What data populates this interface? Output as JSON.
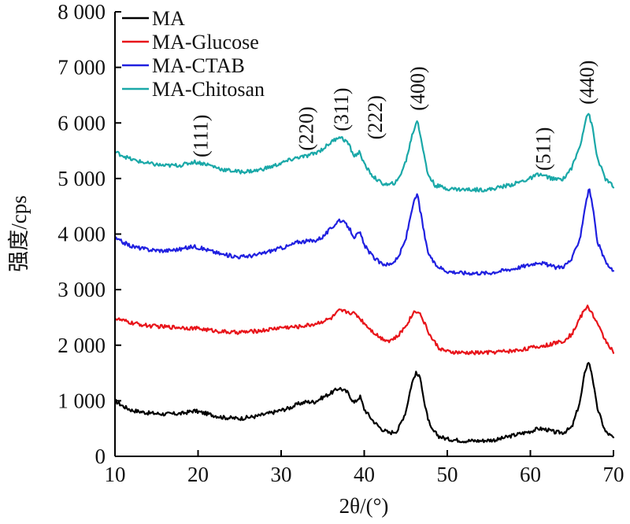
{
  "chart_data": {
    "type": "line",
    "xlabel": "2θ/(°)",
    "ylabel": "强度/cps",
    "xlim": [
      10,
      70
    ],
    "ylim": [
      0,
      8000
    ],
    "x_ticks": [
      10,
      20,
      30,
      40,
      50,
      60,
      70
    ],
    "x_tick_labels": [
      "10",
      "20",
      "30",
      "40",
      "50",
      "60",
      "70"
    ],
    "y_ticks": [
      0,
      1000,
      2000,
      3000,
      4000,
      5000,
      6000,
      7000,
      8000
    ],
    "y_tick_labels": [
      "0",
      "1 000",
      "2 000",
      "3 000",
      "4 000",
      "5 000",
      "6 000",
      "7 000",
      "8 000"
    ],
    "grid": false,
    "legend_position": "top-left",
    "series": [
      {
        "name": "MA",
        "color": "#000000",
        "points": [
          [
            10,
            1000
          ],
          [
            11,
            900
          ],
          [
            12,
            830
          ],
          [
            14,
            780
          ],
          [
            16,
            760
          ],
          [
            18,
            770
          ],
          [
            19.5,
            820
          ],
          [
            21,
            770
          ],
          [
            23,
            700
          ],
          [
            25,
            680
          ],
          [
            27,
            720
          ],
          [
            29,
            790
          ],
          [
            31,
            870
          ],
          [
            32,
            940
          ],
          [
            33,
            980
          ],
          [
            34,
            980
          ],
          [
            35,
            1060
          ],
          [
            36,
            1140
          ],
          [
            37,
            1230
          ],
          [
            38,
            1150
          ],
          [
            38.8,
            960
          ],
          [
            39.5,
            1080
          ],
          [
            40,
            850
          ],
          [
            41,
            650
          ],
          [
            42,
            500
          ],
          [
            43,
            420
          ],
          [
            44,
            460
          ],
          [
            45,
            800
          ],
          [
            45.7,
            1300
          ],
          [
            46.2,
            1500
          ],
          [
            46.8,
            1400
          ],
          [
            47.3,
            900
          ],
          [
            48,
            500
          ],
          [
            49,
            360
          ],
          [
            50,
            310
          ],
          [
            52,
            280
          ],
          [
            54,
            280
          ],
          [
            56,
            300
          ],
          [
            58,
            380
          ],
          [
            60,
            450
          ],
          [
            61,
            500
          ],
          [
            62,
            480
          ],
          [
            63,
            430
          ],
          [
            64,
            430
          ],
          [
            65,
            520
          ],
          [
            66,
            1000
          ],
          [
            66.6,
            1550
          ],
          [
            67,
            1700
          ],
          [
            67.4,
            1500
          ],
          [
            68,
            900
          ],
          [
            69,
            450
          ],
          [
            70,
            330
          ]
        ]
      },
      {
        "name": "MA-Glucose",
        "color": "#e8141a",
        "points": [
          [
            10,
            2480
          ],
          [
            12,
            2400
          ],
          [
            14,
            2350
          ],
          [
            16,
            2330
          ],
          [
            18,
            2320
          ],
          [
            20,
            2300
          ],
          [
            22,
            2260
          ],
          [
            24,
            2230
          ],
          [
            26,
            2240
          ],
          [
            28,
            2270
          ],
          [
            30,
            2320
          ],
          [
            32,
            2330
          ],
          [
            34,
            2380
          ],
          [
            36,
            2480
          ],
          [
            37,
            2620
          ],
          [
            38,
            2600
          ],
          [
            39,
            2560
          ],
          [
            40,
            2400
          ],
          [
            41,
            2250
          ],
          [
            42,
            2130
          ],
          [
            43,
            2080
          ],
          [
            44,
            2150
          ],
          [
            45,
            2350
          ],
          [
            46,
            2600
          ],
          [
            46.5,
            2620
          ],
          [
            47,
            2480
          ],
          [
            48,
            2150
          ],
          [
            49,
            1950
          ],
          [
            50,
            1880
          ],
          [
            52,
            1860
          ],
          [
            55,
            1870
          ],
          [
            58,
            1900
          ],
          [
            60,
            1950
          ],
          [
            62,
            2000
          ],
          [
            63,
            2040
          ],
          [
            64,
            2080
          ],
          [
            65,
            2200
          ],
          [
            66,
            2500
          ],
          [
            66.8,
            2700
          ],
          [
            67.3,
            2620
          ],
          [
            68,
            2400
          ],
          [
            69,
            2100
          ],
          [
            70,
            1880
          ]
        ]
      },
      {
        "name": "MA-CTAB",
        "color": "#2020e0",
        "points": [
          [
            10,
            3920
          ],
          [
            11,
            3850
          ],
          [
            12,
            3780
          ],
          [
            14,
            3720
          ],
          [
            16,
            3700
          ],
          [
            18,
            3730
          ],
          [
            19.5,
            3780
          ],
          [
            21,
            3720
          ],
          [
            23,
            3630
          ],
          [
            25,
            3590
          ],
          [
            27,
            3620
          ],
          [
            29,
            3710
          ],
          [
            31,
            3790
          ],
          [
            32,
            3860
          ],
          [
            33,
            3870
          ],
          [
            34,
            3880
          ],
          [
            35,
            3950
          ],
          [
            36,
            4100
          ],
          [
            37,
            4260
          ],
          [
            38,
            4150
          ],
          [
            38.8,
            3950
          ],
          [
            39.5,
            4020
          ],
          [
            40,
            3800
          ],
          [
            41,
            3600
          ],
          [
            42,
            3470
          ],
          [
            43,
            3450
          ],
          [
            44,
            3550
          ],
          [
            45,
            3900
          ],
          [
            45.8,
            4500
          ],
          [
            46.4,
            4720
          ],
          [
            47,
            4200
          ],
          [
            47.6,
            3700
          ],
          [
            48.5,
            3450
          ],
          [
            50,
            3330
          ],
          [
            52,
            3300
          ],
          [
            55,
            3300
          ],
          [
            58,
            3380
          ],
          [
            60,
            3450
          ],
          [
            61,
            3500
          ],
          [
            62,
            3450
          ],
          [
            63,
            3400
          ],
          [
            64,
            3420
          ],
          [
            65,
            3550
          ],
          [
            66,
            3950
          ],
          [
            66.7,
            4600
          ],
          [
            67.1,
            4820
          ],
          [
            67.5,
            4500
          ],
          [
            68,
            3900
          ],
          [
            69,
            3500
          ],
          [
            70,
            3320
          ]
        ]
      },
      {
        "name": "MA-Chitosan",
        "color": "#1aa8a8",
        "points": [
          [
            10,
            5480
          ],
          [
            11,
            5410
          ],
          [
            12,
            5340
          ],
          [
            14,
            5270
          ],
          [
            16,
            5230
          ],
          [
            18,
            5240
          ],
          [
            19.5,
            5300
          ],
          [
            21,
            5260
          ],
          [
            23,
            5160
          ],
          [
            25,
            5120
          ],
          [
            27,
            5140
          ],
          [
            29,
            5220
          ],
          [
            31,
            5330
          ],
          [
            32,
            5380
          ],
          [
            33,
            5400
          ],
          [
            34,
            5450
          ],
          [
            35,
            5530
          ],
          [
            36,
            5650
          ],
          [
            37,
            5760
          ],
          [
            38,
            5650
          ],
          [
            38.8,
            5400
          ],
          [
            39.5,
            5480
          ],
          [
            40,
            5250
          ],
          [
            41,
            5050
          ],
          [
            42,
            4920
          ],
          [
            43,
            4880
          ],
          [
            44,
            4950
          ],
          [
            45,
            5300
          ],
          [
            45.8,
            5800
          ],
          [
            46.4,
            6060
          ],
          [
            47,
            5600
          ],
          [
            47.6,
            5100
          ],
          [
            48.5,
            4880
          ],
          [
            50,
            4820
          ],
          [
            52,
            4800
          ],
          [
            55,
            4800
          ],
          [
            58,
            4900
          ],
          [
            60,
            5000
          ],
          [
            61,
            5080
          ],
          [
            62,
            5030
          ],
          [
            63,
            4980
          ],
          [
            64,
            5000
          ],
          [
            65,
            5200
          ],
          [
            66,
            5600
          ],
          [
            66.7,
            6100
          ],
          [
            67,
            6180
          ],
          [
            67.5,
            5900
          ],
          [
            68,
            5400
          ],
          [
            69,
            5000
          ],
          [
            70,
            4850
          ]
        ]
      }
    ],
    "annotations": [
      {
        "text": "(111)",
        "x": 20.3,
        "y": 5380
      },
      {
        "text": "(220)",
        "x": 33.0,
        "y": 5500
      },
      {
        "text": "(311)",
        "x": 37.2,
        "y": 5850
      },
      {
        "text": "(222)",
        "x": 41.3,
        "y": 5700
      },
      {
        "text": "(400)",
        "x": 46.4,
        "y": 6220
      },
      {
        "text": "(511)",
        "x": 61.5,
        "y": 5140
      },
      {
        "text": "(440)",
        "x": 66.8,
        "y": 6330
      }
    ]
  }
}
